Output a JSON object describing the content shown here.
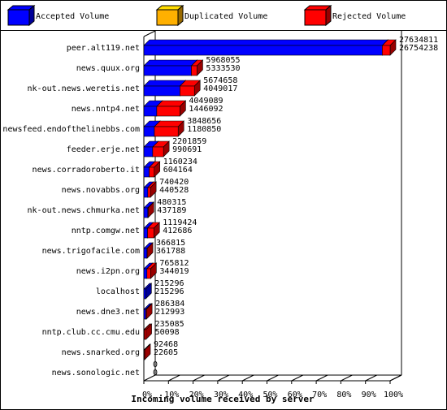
{
  "chart_data": {
    "type": "bar3d",
    "xlabel": "Incoming volume received by server",
    "categories": [
      "peer.alt119.net",
      "news.quux.org",
      "nk-out.news.weretis.net",
      "news.nntp4.net",
      "newsfeed.endofthelinebbs.com",
      "feeder.erje.net",
      "news.corradoroberto.it",
      "news.novabbs.org",
      "nk-out.news.chmurka.net",
      "nntp.comgw.net",
      "news.trigofacile.com",
      "news.i2pn.org",
      "localhost",
      "news.dne3.net",
      "nntp.club.cc.cmu.edu",
      "news.snarked.org",
      "news.sonologic.net"
    ],
    "totals": [
      27634811,
      5968055,
      5674658,
      4049089,
      3848656,
      2201859,
      1160234,
      740420,
      480315,
      1119424,
      366815,
      765812,
      215296,
      286384,
      235085,
      92468,
      0
    ],
    "series": [
      {
        "name": "Accepted Volume",
        "color": "#0000ff",
        "values": [
          26754238,
          5333530,
          4049017,
          1446092,
          1180850,
          990691,
          604164,
          440528,
          437189,
          412686,
          361788,
          344019,
          215296,
          212993,
          50098,
          22605,
          0
        ]
      },
      {
        "name": "Duplicated Volume",
        "color": "#ffb000",
        "values": [
          0,
          0,
          0,
          0,
          0,
          0,
          0,
          0,
          0,
          0,
          0,
          0,
          0,
          0,
          0,
          0,
          0
        ]
      },
      {
        "name": "Rejected Volume",
        "color": "#ff0000",
        "values": [
          880573,
          634525,
          1625641,
          2602997,
          2667806,
          1211168,
          556070,
          299892,
          43126,
          706738,
          5027,
          421793,
          0,
          73391,
          184987,
          69863,
          0
        ]
      }
    ],
    "xlim": [
      0,
      27634811
    ],
    "xticks": [
      {
        "value": 0,
        "label": "0%"
      },
      {
        "value": 2763481.1,
        "label": "10%"
      },
      {
        "value": 5526962.2,
        "label": "20%"
      },
      {
        "value": 8290443.3,
        "label": "30%"
      },
      {
        "value": 11053924.4,
        "label": "40%"
      },
      {
        "value": 13817405.5,
        "label": "50%"
      },
      {
        "value": 16580886.6,
        "label": "60%"
      },
      {
        "value": 19344367.7,
        "label": "70%"
      },
      {
        "value": 22107848.8,
        "label": "80%"
      },
      {
        "value": 24871329.9,
        "label": "90%"
      },
      {
        "value": 27634811,
        "label": "100%"
      }
    ]
  }
}
